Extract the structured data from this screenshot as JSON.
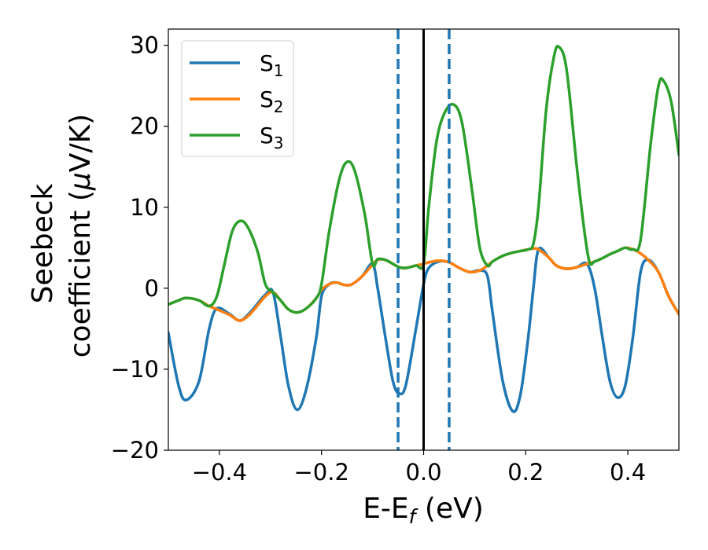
{
  "chart_data": {
    "type": "line",
    "xlabel": "E-E",
    "xlabel_sub": "f",
    "xlabel_unit": " (eV)",
    "ylabel_line1": "Seebeck",
    "ylabel_line2": "coefficient  (",
    "ylabel_mu": "μ",
    "ylabel_unit": "V/K)",
    "xlim": [
      -0.5,
      0.5
    ],
    "ylim": [
      -20,
      32
    ],
    "x_ticks": [
      -0.4,
      -0.2,
      0.0,
      0.2,
      0.4
    ],
    "x_tick_labels": [
      "−0.4",
      "−0.2",
      "0.0",
      "0.2",
      "0.4"
    ],
    "y_ticks": [
      -20,
      -10,
      0,
      10,
      20,
      30
    ],
    "y_tick_labels": [
      "−20",
      "−10",
      "0",
      "10",
      "20",
      "30"
    ],
    "grid": false,
    "legend_position": "top-left",
    "vlines": [
      {
        "x": 0.0,
        "style": "solid",
        "color": "#000000"
      },
      {
        "x": -0.05,
        "style": "dashed",
        "color": "#1f77b4"
      },
      {
        "x": 0.05,
        "style": "dashed",
        "color": "#1f77b4"
      }
    ],
    "series": [
      {
        "name": "S",
        "name_sub": "1",
        "color": "#1f77b4",
        "points": [
          [
            -0.5,
            -5.5
          ],
          [
            -0.48,
            -12.0
          ],
          [
            -0.465,
            -13.8
          ],
          [
            -0.44,
            -11.5
          ],
          [
            -0.42,
            -5.0
          ],
          [
            -0.405,
            -2.5
          ],
          [
            -0.38,
            -3.2
          ],
          [
            -0.36,
            -4.0
          ],
          [
            -0.34,
            -3.0
          ],
          [
            -0.31,
            -0.8
          ],
          [
            -0.295,
            -0.5
          ],
          [
            -0.28,
            -6.0
          ],
          [
            -0.265,
            -12.0
          ],
          [
            -0.248,
            -15.0
          ],
          [
            -0.23,
            -12.5
          ],
          [
            -0.21,
            -6.0
          ],
          [
            -0.2,
            -1.0
          ],
          [
            -0.185,
            0.5
          ],
          [
            -0.17,
            0.7
          ],
          [
            -0.155,
            0.4
          ],
          [
            -0.14,
            0.5
          ],
          [
            -0.12,
            1.5
          ],
          [
            -0.1,
            3.0
          ],
          [
            -0.09,
            0.0
          ],
          [
            -0.075,
            -6.0
          ],
          [
            -0.06,
            -11.5
          ],
          [
            -0.048,
            -13.0
          ],
          [
            -0.035,
            -12.0
          ],
          [
            -0.015,
            -5.0
          ],
          [
            0.0,
            0.5
          ],
          [
            0.01,
            2.5
          ],
          [
            0.03,
            3.3
          ],
          [
            0.05,
            3.2
          ],
          [
            0.07,
            2.5
          ],
          [
            0.09,
            2.0
          ],
          [
            0.11,
            2.2
          ],
          [
            0.125,
            1.5
          ],
          [
            0.135,
            -3.0
          ],
          [
            0.155,
            -11.5
          ],
          [
            0.175,
            -15.2
          ],
          [
            0.19,
            -13.0
          ],
          [
            0.205,
            -6.0
          ],
          [
            0.215,
            0.0
          ],
          [
            0.225,
            4.8
          ],
          [
            0.245,
            3.8
          ],
          [
            0.26,
            2.8
          ],
          [
            0.28,
            2.4
          ],
          [
            0.3,
            2.6
          ],
          [
            0.32,
            3.0
          ],
          [
            0.335,
            0.0
          ],
          [
            0.35,
            -6.0
          ],
          [
            0.365,
            -11.5
          ],
          [
            0.38,
            -13.5
          ],
          [
            0.395,
            -12.0
          ],
          [
            0.41,
            -6.0
          ],
          [
            0.425,
            2.0
          ],
          [
            0.44,
            3.5
          ],
          [
            0.46,
            2.0
          ],
          [
            0.48,
            -1.0
          ],
          [
            0.5,
            -3.2
          ]
        ]
      },
      {
        "name": "S",
        "name_sub": "2",
        "color": "#ff7f0e",
        "points": [
          [
            -0.5,
            -2.0
          ],
          [
            -0.48,
            -1.5
          ],
          [
            -0.465,
            -1.2
          ],
          [
            -0.44,
            -1.5
          ],
          [
            -0.42,
            -2.2
          ],
          [
            -0.405,
            -2.6
          ],
          [
            -0.38,
            -3.3
          ],
          [
            -0.36,
            -4.0
          ],
          [
            -0.34,
            -3.2
          ],
          [
            -0.31,
            -1.0
          ],
          [
            -0.295,
            -0.5
          ],
          [
            -0.28,
            -1.5
          ],
          [
            -0.265,
            -2.6
          ],
          [
            -0.248,
            -3.0
          ],
          [
            -0.23,
            -2.5
          ],
          [
            -0.21,
            -1.2
          ],
          [
            -0.2,
            -0.2
          ],
          [
            -0.185,
            0.5
          ],
          [
            -0.17,
            0.7
          ],
          [
            -0.155,
            0.4
          ],
          [
            -0.14,
            0.5
          ],
          [
            -0.12,
            1.5
          ],
          [
            -0.1,
            2.9
          ],
          [
            -0.09,
            3.5
          ],
          [
            -0.075,
            3.5
          ],
          [
            -0.06,
            3.0
          ],
          [
            -0.048,
            2.6
          ],
          [
            -0.035,
            2.5
          ],
          [
            -0.015,
            2.8
          ],
          [
            0.0,
            3.0
          ],
          [
            0.01,
            3.2
          ],
          [
            0.03,
            3.4
          ],
          [
            0.05,
            3.2
          ],
          [
            0.07,
            2.5
          ],
          [
            0.09,
            2.0
          ],
          [
            0.11,
            2.2
          ],
          [
            0.125,
            2.8
          ],
          [
            0.135,
            3.3
          ],
          [
            0.155,
            4.0
          ],
          [
            0.175,
            4.4
          ],
          [
            0.19,
            4.6
          ],
          [
            0.205,
            4.8
          ],
          [
            0.215,
            4.9
          ],
          [
            0.225,
            4.8
          ],
          [
            0.245,
            3.8
          ],
          [
            0.26,
            2.8
          ],
          [
            0.28,
            2.4
          ],
          [
            0.3,
            2.6
          ],
          [
            0.32,
            3.0
          ],
          [
            0.335,
            3.3
          ],
          [
            0.35,
            3.7
          ],
          [
            0.365,
            4.2
          ],
          [
            0.38,
            4.6
          ],
          [
            0.395,
            5.0
          ],
          [
            0.41,
            4.8
          ],
          [
            0.425,
            4.3
          ],
          [
            0.44,
            3.5
          ],
          [
            0.46,
            2.0
          ],
          [
            0.48,
            -1.0
          ],
          [
            0.5,
            -3.2
          ]
        ]
      },
      {
        "name": "S",
        "name_sub": "3",
        "color": "#2ca02c",
        "points": [
          [
            -0.5,
            -2.0
          ],
          [
            -0.48,
            -1.5
          ],
          [
            -0.465,
            -1.2
          ],
          [
            -0.44,
            -1.5
          ],
          [
            -0.42,
            -2.2
          ],
          [
            -0.405,
            -1.0
          ],
          [
            -0.39,
            3.0
          ],
          [
            -0.375,
            7.0
          ],
          [
            -0.36,
            8.3
          ],
          [
            -0.345,
            7.6
          ],
          [
            -0.325,
            4.5
          ],
          [
            -0.31,
            0.5
          ],
          [
            -0.295,
            -0.5
          ],
          [
            -0.28,
            -1.5
          ],
          [
            -0.265,
            -2.6
          ],
          [
            -0.248,
            -3.0
          ],
          [
            -0.23,
            -2.5
          ],
          [
            -0.21,
            -1.2
          ],
          [
            -0.2,
            0.5
          ],
          [
            -0.185,
            7.0
          ],
          [
            -0.165,
            13.5
          ],
          [
            -0.15,
            15.6
          ],
          [
            -0.135,
            14.5
          ],
          [
            -0.115,
            9.0
          ],
          [
            -0.1,
            3.0
          ],
          [
            -0.09,
            3.6
          ],
          [
            -0.075,
            3.5
          ],
          [
            -0.06,
            3.0
          ],
          [
            -0.048,
            2.6
          ],
          [
            -0.035,
            2.5
          ],
          [
            -0.015,
            2.8
          ],
          [
            0.0,
            3.0
          ],
          [
            0.01,
            10.0
          ],
          [
            0.025,
            18.0
          ],
          [
            0.04,
            21.5
          ],
          [
            0.058,
            22.7
          ],
          [
            0.075,
            20.5
          ],
          [
            0.095,
            12.0
          ],
          [
            0.11,
            5.0
          ],
          [
            0.125,
            2.8
          ],
          [
            0.135,
            3.3
          ],
          [
            0.155,
            4.0
          ],
          [
            0.175,
            4.4
          ],
          [
            0.19,
            4.6
          ],
          [
            0.205,
            4.8
          ],
          [
            0.215,
            5.5
          ],
          [
            0.225,
            10.0
          ],
          [
            0.24,
            22.0
          ],
          [
            0.255,
            28.5
          ],
          [
            0.265,
            29.8
          ],
          [
            0.28,
            27.0
          ],
          [
            0.3,
            15.0
          ],
          [
            0.315,
            7.0
          ],
          [
            0.325,
            3.2
          ],
          [
            0.335,
            3.3
          ],
          [
            0.35,
            3.7
          ],
          [
            0.365,
            4.2
          ],
          [
            0.38,
            4.6
          ],
          [
            0.395,
            5.0
          ],
          [
            0.41,
            4.8
          ],
          [
            0.425,
            6.0
          ],
          [
            0.445,
            18.0
          ],
          [
            0.46,
            25.0
          ],
          [
            0.47,
            25.6
          ],
          [
            0.485,
            23.0
          ],
          [
            0.5,
            16.5
          ]
        ]
      }
    ]
  }
}
